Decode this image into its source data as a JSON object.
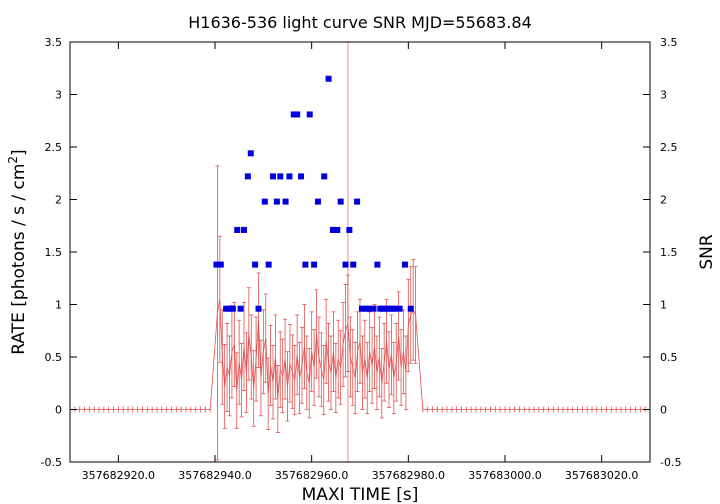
{
  "chart_data": {
    "type": "scatter",
    "title": "H1636-536 light curve  SNR MJD=55683.84",
    "xlabel": "MAXI TIME [s]",
    "ylabel_left": "RATE [photons / s / cm",
    "ylabel_left_sup": "2",
    "ylabel_left_end": "]",
    "ylabel_right": "SNR",
    "xlim": [
      357682910.0,
      357683030.0
    ],
    "ylim": [
      -0.5,
      3.5
    ],
    "y2lim": [
      -0.5,
      3.5
    ],
    "x_ticks": [
      357682920.0,
      357682940.0,
      357682960.0,
      357682980.0,
      357683000.0,
      357683020.0
    ],
    "x_tick_labels": [
      "357682920.0",
      "357682940.0",
      "357682960.0",
      "357682980.0",
      "357683000.0",
      "357683020.0"
    ],
    "y_ticks": [
      -0.5,
      0,
      0.5,
      1,
      1.5,
      2,
      2.5,
      3,
      3.5
    ],
    "y_tick_labels": [
      "-0.5",
      "0",
      "0.5",
      "1",
      "1.5",
      "2",
      "2.5",
      "3",
      "3.5"
    ],
    "y2_ticks": [
      -0.5,
      0,
      0.5,
      1,
      1.5,
      2,
      2.5,
      3,
      3.5
    ],
    "y2_tick_labels": [
      "-0.5",
      "0",
      "0.5",
      "1",
      "1.5",
      "2",
      "2.5",
      "3",
      "3.5"
    ],
    "marker_x": 357682967.5,
    "grid": false,
    "series": [
      {
        "kind": "rate",
        "color": "#e05050",
        "x": [
          357682910.0,
          357682911.0,
          357682912.0,
          357682913.0,
          357682914.0,
          357682915.0,
          357682916.0,
          357682917.0,
          357682918.0,
          357682919.0,
          357682920.0,
          357682921.0,
          357682922.0,
          357682923.0,
          357682924.0,
          357682925.0,
          357682926.0,
          357682927.0,
          357682928.0,
          357682929.0,
          357682930.0,
          357682931.0,
          357682932.0,
          357682933.0,
          357682934.0,
          357682935.0,
          357682936.0,
          357682937.0,
          357682938.0,
          357682939.0,
          357682940.5,
          357682941.0,
          357682941.5,
          357682942.0,
          357682942.5,
          357682943.0,
          357682943.5,
          357682944.0,
          357682944.5,
          357682945.0,
          357682945.5,
          357682946.0,
          357682946.5,
          357682947.0,
          357682947.5,
          357682948.0,
          357682948.5,
          357682949.0,
          357682949.5,
          357682950.0,
          357682950.5,
          357682951.0,
          357682951.5,
          357682952.0,
          357682952.5,
          357682953.0,
          357682953.5,
          357682954.0,
          357682954.5,
          357682955.0,
          357682955.5,
          357682956.0,
          357682956.5,
          357682957.0,
          357682957.5,
          357682958.0,
          357682958.5,
          357682959.0,
          357682959.5,
          357682960.0,
          357682960.5,
          357682961.0,
          357682961.5,
          357682962.0,
          357682962.5,
          357682963.0,
          357682963.5,
          357682964.0,
          357682964.5,
          357682965.0,
          357682965.5,
          357682966.0,
          357682966.5,
          357682967.0,
          357682967.5,
          357682968.0,
          357682968.5,
          357682969.0,
          357682969.5,
          357682970.0,
          357682970.5,
          357682971.0,
          357682971.5,
          357682972.0,
          357682972.5,
          357682973.0,
          357682973.5,
          357682974.0,
          357682974.5,
          357682975.0,
          357682975.5,
          357682976.0,
          357682976.5,
          357682977.0,
          357682977.5,
          357682978.0,
          357682978.5,
          357682979.0,
          357682979.5,
          357682980.0,
          357682980.5,
          357682981.0,
          357682981.5,
          357682983.0,
          357682984.0,
          357682985.0,
          357682986.0,
          357682987.0,
          357682988.0,
          357682989.0,
          357682990.0,
          357682991.0,
          357682992.0,
          357682993.0,
          357682994.0,
          357682995.0,
          357682996.0,
          357682997.0,
          357682998.0,
          357682999.0,
          357683000.0,
          357683001.0,
          357683002.0,
          357683003.0,
          357683004.0,
          357683005.0,
          357683006.0,
          357683007.0,
          357683008.0,
          357683009.0,
          357683010.0,
          357683011.0,
          357683012.0,
          357683013.0,
          357683014.0,
          357683015.0,
          357683016.0,
          357683017.0,
          357683018.0,
          357683019.0,
          357683020.0,
          357683021.0,
          357683022.0,
          357683023.0,
          357683024.0,
          357683025.0,
          357683026.0,
          357683027.0,
          357683028.0,
          357683029.0,
          357683030.0
        ],
        "y": [
          0,
          0,
          0,
          0,
          0,
          0,
          0,
          0,
          0,
          0,
          0,
          0,
          0,
          0,
          0,
          0,
          0,
          0,
          0,
          0,
          0,
          0,
          0,
          0,
          0,
          0,
          0,
          0,
          0,
          0,
          0.92,
          1.05,
          0.5,
          0.22,
          0.4,
          0.32,
          0.55,
          0.62,
          0.18,
          0.45,
          0.28,
          0.6,
          0.35,
          0.72,
          0.5,
          0.2,
          0.48,
          0.85,
          0.3,
          0.55,
          0.68,
          0.15,
          0.42,
          0.26,
          0.5,
          0.1,
          0.38,
          0.32,
          0.48,
          0.22,
          0.44,
          0.36,
          0.28,
          0.52,
          0.3,
          0.42,
          0.6,
          0.35,
          0.25,
          0.55,
          0.4,
          0.72,
          0.5,
          0.38,
          0.28,
          0.65,
          0.45,
          0.35,
          0.55,
          0.3,
          0.48,
          0.4,
          0.62,
          0.75,
          0.82,
          0.5,
          0.4,
          0.3,
          0.55,
          0.65,
          0.35,
          0.48,
          0.3,
          0.55,
          0.42,
          0.6,
          0.35,
          0.5,
          0.25,
          0.45,
          0.65,
          0.38,
          0.52,
          0.3,
          0.45,
          0.7,
          0.4,
          0.55,
          0.35,
          0.8,
          0.9,
          0.95,
          0.9,
          0,
          0,
          0,
          0,
          0,
          0,
          0,
          0,
          0,
          0,
          0,
          0,
          0,
          0,
          0,
          0,
          0,
          0,
          0,
          0,
          0,
          0,
          0,
          0,
          0,
          0,
          0,
          0,
          0,
          0,
          0,
          0,
          0,
          0,
          0,
          0,
          0,
          0,
          0,
          0,
          0,
          0,
          0,
          0,
          0,
          0,
          0,
          0
        ],
        "err": [
          0,
          0,
          0,
          0,
          0,
          0,
          0,
          0,
          0,
          0,
          0,
          0,
          0,
          0,
          0,
          0,
          0,
          0,
          0,
          0,
          0,
          0,
          0,
          0,
          0,
          0,
          0,
          0,
          0,
          0,
          1.4,
          0.6,
          0.45,
          0.4,
          0.42,
          0.38,
          0.44,
          0.4,
          0.36,
          0.4,
          0.35,
          0.42,
          0.38,
          0.44,
          0.4,
          0.36,
          0.4,
          0.45,
          0.36,
          0.4,
          0.42,
          0.34,
          0.38,
          0.35,
          0.4,
          0.32,
          0.36,
          0.35,
          0.38,
          0.33,
          0.37,
          0.35,
          0.33,
          0.38,
          0.34,
          0.36,
          0.4,
          0.35,
          0.33,
          0.38,
          0.36,
          0.42,
          0.38,
          0.35,
          0.33,
          0.4,
          0.37,
          0.35,
          0.38,
          0.33,
          0.37,
          0.35,
          0.4,
          0.44,
          0.46,
          0.38,
          0.36,
          0.34,
          0.38,
          0.4,
          0.35,
          0.37,
          0.34,
          0.38,
          0.36,
          0.4,
          0.35,
          0.38,
          0.33,
          0.37,
          0.4,
          0.36,
          0.38,
          0.34,
          0.37,
          0.42,
          0.36,
          0.4,
          0.35,
          0.44,
          0.46,
          0.48,
          0.46,
          0,
          0,
          0,
          0,
          0,
          0,
          0,
          0,
          0,
          0,
          0,
          0,
          0,
          0,
          0,
          0,
          0,
          0,
          0,
          0,
          0,
          0,
          0,
          0,
          0,
          0,
          0,
          0,
          0,
          0,
          0,
          0,
          0,
          0,
          0,
          0,
          0,
          0,
          0,
          0,
          0,
          0,
          0,
          0,
          0,
          0,
          0,
          0
        ]
      },
      {
        "kind": "snr",
        "color": "#0000dd",
        "x": [
          357682940.3,
          357682941.2,
          357682942.3,
          357682943.0,
          357682943.7,
          357682944.6,
          357682945.3,
          357682946.0,
          357682946.8,
          357682947.4,
          357682948.3,
          357682949.0,
          357682950.3,
          357682951.1,
          357682952.0,
          357682952.8,
          357682953.5,
          357682954.6,
          357682955.4,
          357682956.3,
          357682957.0,
          357682957.8,
          357682958.7,
          357682959.6,
          357682960.5,
          357682961.3,
          357682962.6,
          357682963.5,
          357682964.4,
          357682965.3,
          357682966.0,
          357682967.0,
          357682967.8,
          357682968.6,
          357682969.4,
          357682970.4,
          357682971.1,
          357682971.9,
          357682972.8,
          357682973.6,
          357682974.2,
          357682974.8,
          357682975.4,
          357682976.0,
          357682976.6,
          357682977.3,
          357682978.2,
          357682979.3,
          357682980.5
        ],
        "y": [
          1.38,
          1.38,
          0.96,
          0.96,
          0.96,
          1.71,
          0.96,
          1.71,
          2.22,
          2.44,
          1.38,
          0.96,
          1.98,
          1.38,
          2.22,
          1.98,
          2.22,
          1.98,
          2.22,
          2.81,
          2.81,
          2.22,
          1.38,
          2.81,
          1.38,
          1.98,
          2.22,
          3.15,
          1.71,
          1.71,
          1.98,
          1.38,
          1.71,
          1.38,
          1.98,
          0.96,
          0.96,
          0.96,
          0.96,
          1.38,
          0.96,
          0.96,
          0.96,
          0.96,
          0.96,
          0.96,
          0.96,
          1.38,
          0.96
        ]
      }
    ]
  }
}
